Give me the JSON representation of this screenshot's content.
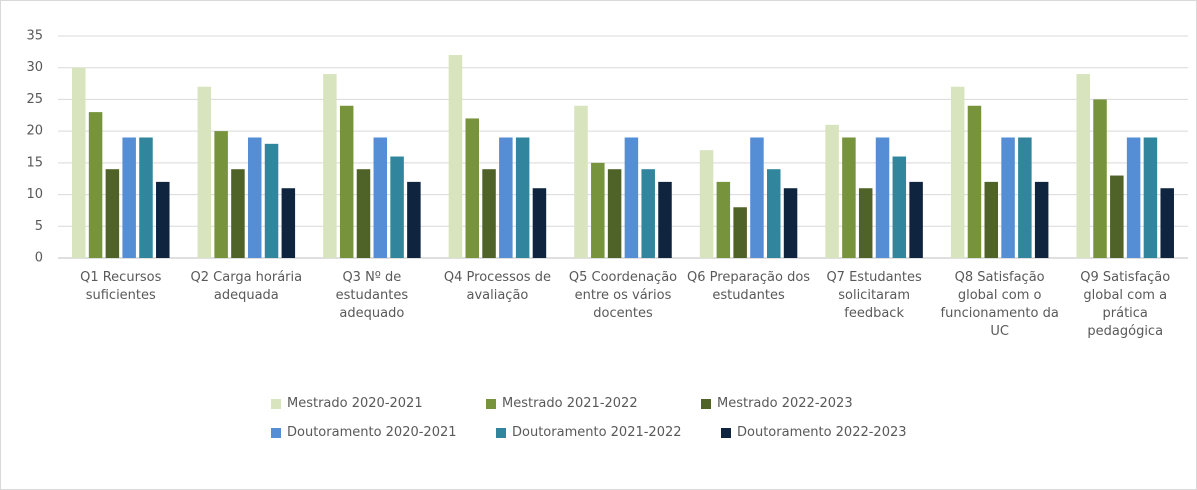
{
  "chart_data": {
    "type": "bar",
    "categories": [
      "Q1 Recursos suficientes",
      "Q2 Carga horária adequada",
      "Q3 Nº de estudantes adequado",
      "Q4 Processos de avaliação",
      "Q5 Coordenação entre os vários docentes",
      "Q6 Preparação dos estudantes",
      "Q7 Estudantes solicitaram feedback",
      "Q8 Satisfação global com o funcionamento da UC",
      "Q9 Satisfação global com a prática pedagógica"
    ],
    "series": [
      {
        "name": "Mestrado 2020-2021",
        "color": "#d7e4bd",
        "values": [
          30,
          27,
          29,
          32,
          24,
          17,
          21,
          27,
          29
        ]
      },
      {
        "name": "Mestrado 2021-2022",
        "color": "#77933c",
        "values": [
          23,
          20,
          24,
          22,
          15,
          12,
          19,
          24,
          25
        ]
      },
      {
        "name": "Mestrado 2022-2023",
        "color": "#4f6228",
        "values": [
          14,
          14,
          14,
          14,
          14,
          8,
          11,
          12,
          13
        ]
      },
      {
        "name": "Doutoramento 2020-2021",
        "color": "#558ed5",
        "values": [
          19,
          19,
          19,
          19,
          19,
          19,
          19,
          19,
          19
        ]
      },
      {
        "name": "Doutoramento 2021-2022",
        "color": "#31859c",
        "values": [
          19,
          18,
          16,
          19,
          14,
          14,
          16,
          19,
          19
        ]
      },
      {
        "name": "Doutoramento 2022-2023",
        "color": "#0f243e",
        "values": [
          12,
          11,
          12,
          11,
          12,
          11,
          12,
          12,
          11
        ]
      }
    ],
    "ylim": [
      0,
      35
    ],
    "yticks": [
      0,
      5,
      10,
      15,
      20,
      25,
      30,
      35
    ],
    "grid": true,
    "legend": "bottom"
  }
}
